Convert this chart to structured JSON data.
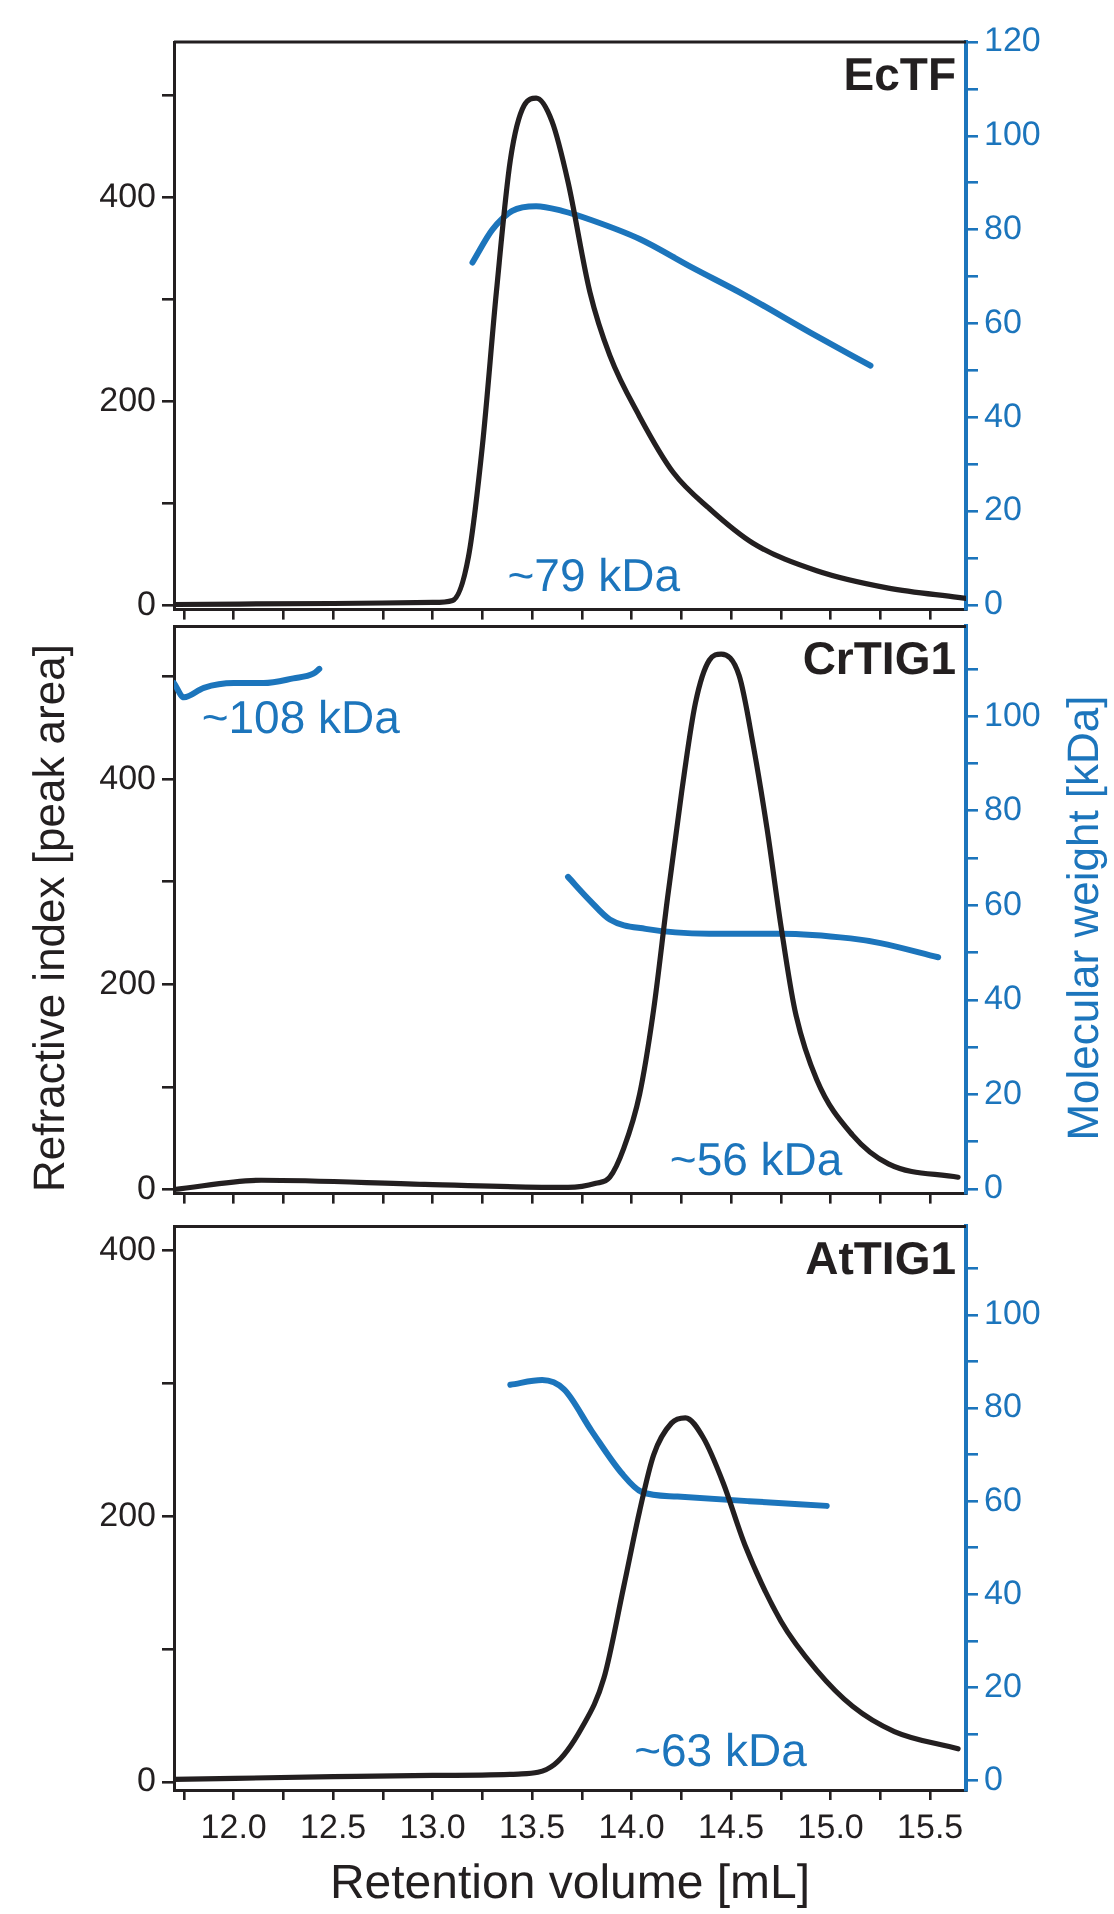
{
  "chart_data": [
    {
      "type": "line",
      "title": "EcTF",
      "xlim": [
        11.7,
        15.68
      ],
      "xticks": [
        {
          "value": 11.75,
          "label": null
        },
        {
          "value": 12,
          "label": null
        },
        {
          "value": 12.25,
          "label": null
        },
        {
          "value": 12.5,
          "label": null
        },
        {
          "value": 12.75,
          "label": null
        },
        {
          "value": 13,
          "label": null
        },
        {
          "value": 13.25,
          "label": null
        },
        {
          "value": 13.5,
          "label": null
        },
        {
          "value": 13.75,
          "label": null
        },
        {
          "value": 14,
          "label": null
        },
        {
          "value": 14.25,
          "label": null
        },
        {
          "value": 14.5,
          "label": null
        },
        {
          "value": 14.75,
          "label": null
        },
        {
          "value": 15,
          "label": null
        },
        {
          "value": 15.25,
          "label": null
        },
        {
          "value": 15.5,
          "label": null
        }
      ],
      "ylim": [
        -4,
        552
      ],
      "yticks": [
        0,
        {
          "value": 100,
          "label": null
        },
        200,
        {
          "value": 300,
          "label": null
        },
        400,
        {
          "value": 500,
          "label": null
        }
      ],
      "y2lim": [
        -1,
        120
      ],
      "y2ticks": [
        0,
        {
          "value": 10,
          "label": null
        },
        20,
        {
          "value": 30,
          "label": null
        },
        40,
        {
          "value": 50,
          "label": null
        },
        60,
        {
          "value": 70,
          "label": null
        },
        80,
        {
          "value": 90,
          "label": null
        },
        100,
        {
          "value": 110,
          "label": null
        },
        120
      ],
      "tick_labels": "y",
      "grid": false,
      "series": [
        {
          "color": "#231f20",
          "x": [
            11.7,
            12.5,
            13.0,
            13.1,
            13.18,
            13.25,
            13.32,
            13.39,
            13.46,
            13.52,
            13.6,
            13.68,
            13.79,
            13.89,
            14.04,
            14.21,
            14.39,
            14.61,
            14.93,
            15.29,
            15.64,
            15.68
          ],
          "values": [
            1,
            2,
            3,
            5,
            48,
            157,
            307,
            436,
            490,
            497,
            474,
            415,
            307,
            245,
            185,
            130,
            95,
            61,
            34,
            17,
            8,
            7
          ]
        },
        {
          "color": "#1c75bc",
          "axis": "y2",
          "x": [
            13.2,
            13.3,
            13.4,
            13.52,
            13.65,
            13.8,
            14.04,
            14.3,
            14.57,
            14.9,
            15.2
          ],
          "values": [
            73,
            80,
            84,
            85,
            84,
            82,
            78,
            72,
            66,
            58,
            51
          ]
        }
      ],
      "annotations": [
        "~79 kDa"
      ]
    },
    {
      "type": "line",
      "title": "CrTIG1",
      "ylabel": "Refractive index [peak area]",
      "y2label": "Molecular weight [kDa]",
      "xlim": [
        11.7,
        15.68
      ],
      "xticks": [
        {
          "value": 11.75,
          "label": null
        },
        {
          "value": 12,
          "label": null
        },
        {
          "value": 12.25,
          "label": null
        },
        {
          "value": 12.5,
          "label": null
        },
        {
          "value": 12.75,
          "label": null
        },
        {
          "value": 13,
          "label": null
        },
        {
          "value": 13.25,
          "label": null
        },
        {
          "value": 13.5,
          "label": null
        },
        {
          "value": 13.75,
          "label": null
        },
        {
          "value": 14,
          "label": null
        },
        {
          "value": 14.25,
          "label": null
        },
        {
          "value": 14.5,
          "label": null
        },
        {
          "value": 14.75,
          "label": null
        },
        {
          "value": 15,
          "label": null
        },
        {
          "value": 15.25,
          "label": null
        },
        {
          "value": 15.5,
          "label": null
        }
      ],
      "ylim": [
        -4,
        549
      ],
      "yticks": [
        0,
        {
          "value": 100,
          "label": null
        },
        200,
        {
          "value": 300,
          "label": null
        },
        400,
        {
          "value": 500,
          "label": null
        }
      ],
      "y2lim": [
        -1,
        119
      ],
      "y2ticks": [
        0,
        {
          "value": 10,
          "label": null
        },
        20,
        {
          "value": 30,
          "label": null
        },
        40,
        {
          "value": 50,
          "label": null
        },
        60,
        {
          "value": 70,
          "label": null
        },
        80,
        {
          "value": 90,
          "label": null
        },
        100,
        {
          "value": 110,
          "label": null
        }
      ],
      "tick_labels": "y",
      "grid": false,
      "series": [
        {
          "color": "#231f20",
          "x": [
            11.7,
            12.14,
            12.96,
            13.68,
            13.82,
            13.89,
            13.96,
            14.04,
            14.11,
            14.18,
            14.25,
            14.32,
            14.39,
            14.45,
            14.54,
            14.61,
            14.68,
            14.75,
            14.82,
            14.93,
            15.11,
            15.29,
            15.64
          ],
          "values": [
            0,
            9,
            5,
            2,
            6,
            12,
            40,
            93,
            175,
            284,
            386,
            474,
            516,
            522,
            501,
            434,
            352,
            257,
            175,
            107,
            53,
            25,
            12
          ]
        },
        {
          "color": "#1c75bc",
          "axis": "y2",
          "x": [
            11.7,
            11.75,
            11.85,
            12.0,
            12.15,
            12.3,
            12.4,
            12.43,
            13.0,
            13.68,
            13.79,
            13.89,
            14.07,
            14.39,
            14.75,
            15.1,
            15.25,
            15.54
          ],
          "values": [
            107,
            104,
            106,
            107,
            107,
            108,
            109,
            110,
            null,
            66,
            61,
            57,
            55,
            54,
            54,
            53,
            52,
            49
          ]
        }
      ],
      "annotations": [
        "~108 kDa",
        "~56 kDa"
      ]
    },
    {
      "type": "line",
      "title": "AtTIG1",
      "xlabel": "Retention volume [mL]",
      "xlim": [
        11.7,
        15.68
      ],
      "xticks": [
        {
          "value": 11.75,
          "label": null
        },
        {
          "value": 12,
          "label": "12.0"
        },
        {
          "value": 12.25,
          "label": null
        },
        {
          "value": 12.5,
          "label": "12.5"
        },
        {
          "value": 12.75,
          "label": null
        },
        {
          "value": 13,
          "label": "13.0"
        },
        {
          "value": 13.25,
          "label": null
        },
        {
          "value": 13.5,
          "label": "13.5"
        },
        {
          "value": 13.75,
          "label": null
        },
        {
          "value": 14,
          "label": "14.0"
        },
        {
          "value": 14.25,
          "label": null
        },
        {
          "value": 14.5,
          "label": "14.5"
        },
        {
          "value": 14.75,
          "label": null
        },
        {
          "value": 15,
          "label": "15.0"
        },
        {
          "value": 15.25,
          "label": null
        },
        {
          "value": 15.5,
          "label": "15.5"
        }
      ],
      "ylim": [
        -6,
        418
      ],
      "yticks": [
        0,
        {
          "value": 100,
          "label": null
        },
        200,
        {
          "value": 300,
          "label": null
        },
        400
      ],
      "y2lim": [
        -2,
        119
      ],
      "y2ticks": [
        0,
        {
          "value": 10,
          "label": null
        },
        20,
        {
          "value": 30,
          "label": null
        },
        40,
        {
          "value": 50,
          "label": null
        },
        60,
        {
          "value": 70,
          "label": null
        },
        80,
        {
          "value": 90,
          "label": null
        },
        100,
        {
          "value": 110,
          "label": null
        }
      ],
      "grid": false,
      "series": [
        {
          "color": "#231f20",
          "x": [
            11.7,
            12.5,
            13.0,
            13.43,
            13.61,
            13.75,
            13.86,
            13.96,
            14.04,
            14.11,
            14.2,
            14.27,
            14.36,
            14.46,
            14.57,
            14.75,
            14.93,
            15.11,
            15.32,
            15.64
          ],
          "values": [
            2,
            4,
            5,
            6,
            13,
            41,
            78,
            147,
            204,
            246,
            270,
            274,
            259,
            225,
            178,
            121,
            84,
            57,
            38,
            25
          ]
        },
        {
          "color": "#1c75bc",
          "axis": "y2",
          "x": [
            13.39,
            13.55,
            13.66,
            13.8,
            13.95,
            14.05,
            14.23,
            14.59,
            14.98
          ],
          "values": [
            85,
            86,
            84,
            75,
            66,
            62,
            61,
            60,
            59
          ]
        }
      ],
      "annotations": [
        "~63 kDa"
      ]
    }
  ]
}
